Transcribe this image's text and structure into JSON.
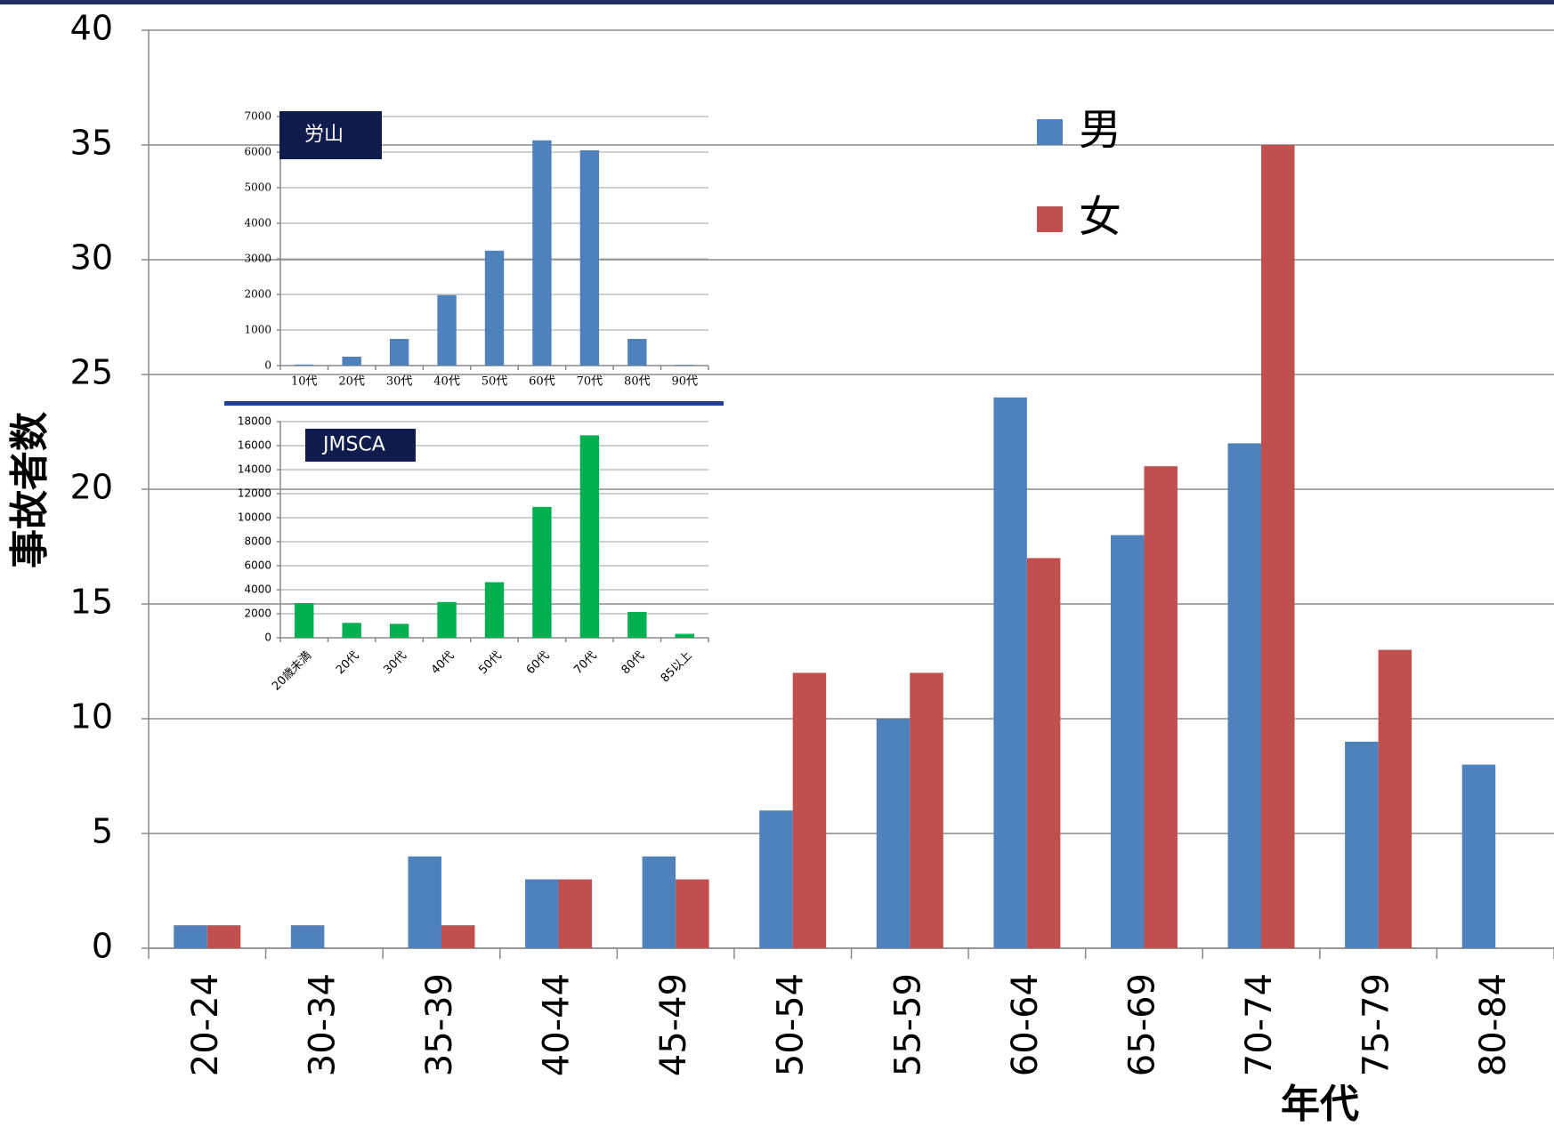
{
  "chart_data": [
    {
      "type": "bar",
      "x_label": "年代",
      "y_label": "事故者数",
      "categories": [
        "20-24",
        "30-34",
        "35-39",
        "40-44",
        "45-49",
        "50-54",
        "55-59",
        "60-64",
        "65-69",
        "70-74",
        "75-79",
        "80-84"
      ],
      "series": [
        {
          "name": "男",
          "color": "#4f81bd",
          "values": [
            1,
            1,
            4,
            3,
            4,
            6,
            10,
            24,
            18,
            22,
            9,
            8
          ]
        },
        {
          "name": "女",
          "color": "#c0504d",
          "values": [
            1,
            0,
            1,
            3,
            3,
            12,
            12,
            17,
            21,
            35,
            13,
            0
          ]
        }
      ],
      "ylim": [
        0,
        40
      ],
      "yticks": [
        0,
        5,
        10,
        15,
        20,
        25,
        30,
        35,
        40
      ],
      "grid": true
    },
    {
      "type": "bar",
      "title": "労山",
      "categories": [
        "10代",
        "20代",
        "30代",
        "40代",
        "50代",
        "60代",
        "70代",
        "80代",
        "90代"
      ],
      "values": [
        30,
        250,
        750,
        1980,
        3230,
        6330,
        6050,
        750,
        20
      ],
      "color": "#4f81bd",
      "ylim": [
        0,
        7000
      ],
      "yticks": [
        0,
        1000,
        2000,
        3000,
        4000,
        5000,
        6000,
        7000
      ],
      "grid": true
    },
    {
      "type": "bar",
      "title": "JMSCA",
      "categories": [
        "20歳未満",
        "20代",
        "30代",
        "40代",
        "50代",
        "60代",
        "70代",
        "80代",
        "85以上"
      ],
      "values": [
        2890,
        1240,
        1160,
        2980,
        4630,
        10900,
        16860,
        2150,
        330
      ],
      "color": "#00b050",
      "ylim": [
        0,
        18000
      ],
      "yticks": [
        0,
        2000,
        4000,
        6000,
        8000,
        10000,
        12000,
        14000,
        16000,
        18000
      ],
      "grid": true
    }
  ]
}
